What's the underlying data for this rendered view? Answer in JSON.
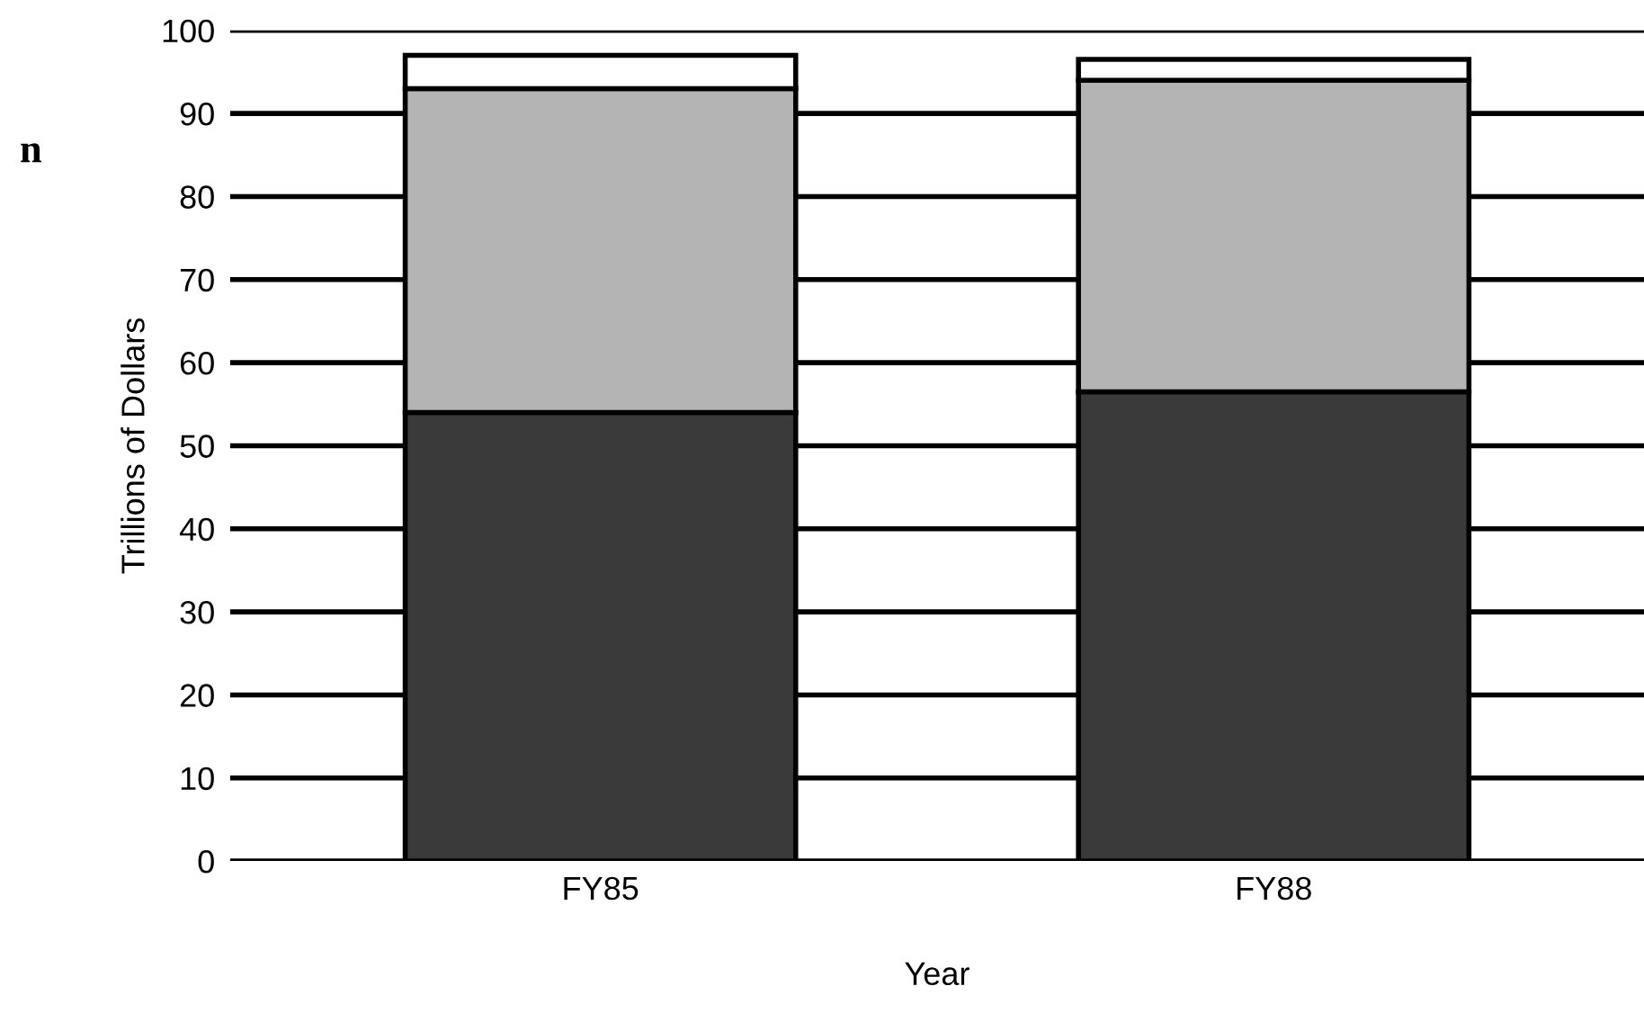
{
  "chart_data": {
    "type": "bar",
    "stacked": true,
    "xlabel": "Year",
    "ylabel": "Trillions of Dollars",
    "categories": [
      "FY85",
      "FY88"
    ],
    "series": [
      {
        "color": "#3a3a3a",
        "values": [
          54,
          56.5
        ]
      },
      {
        "color": "#b4b4b4",
        "values": [
          39,
          37.5
        ]
      },
      {
        "color": "#ffffff",
        "values": [
          4,
          2.5
        ]
      }
    ],
    "ylim": [
      0,
      100
    ],
    "yticks": [
      0,
      10,
      20,
      30,
      40,
      50,
      60,
      70,
      80,
      90,
      100
    ],
    "grid": "y",
    "annotations": [
      "n"
    ]
  }
}
